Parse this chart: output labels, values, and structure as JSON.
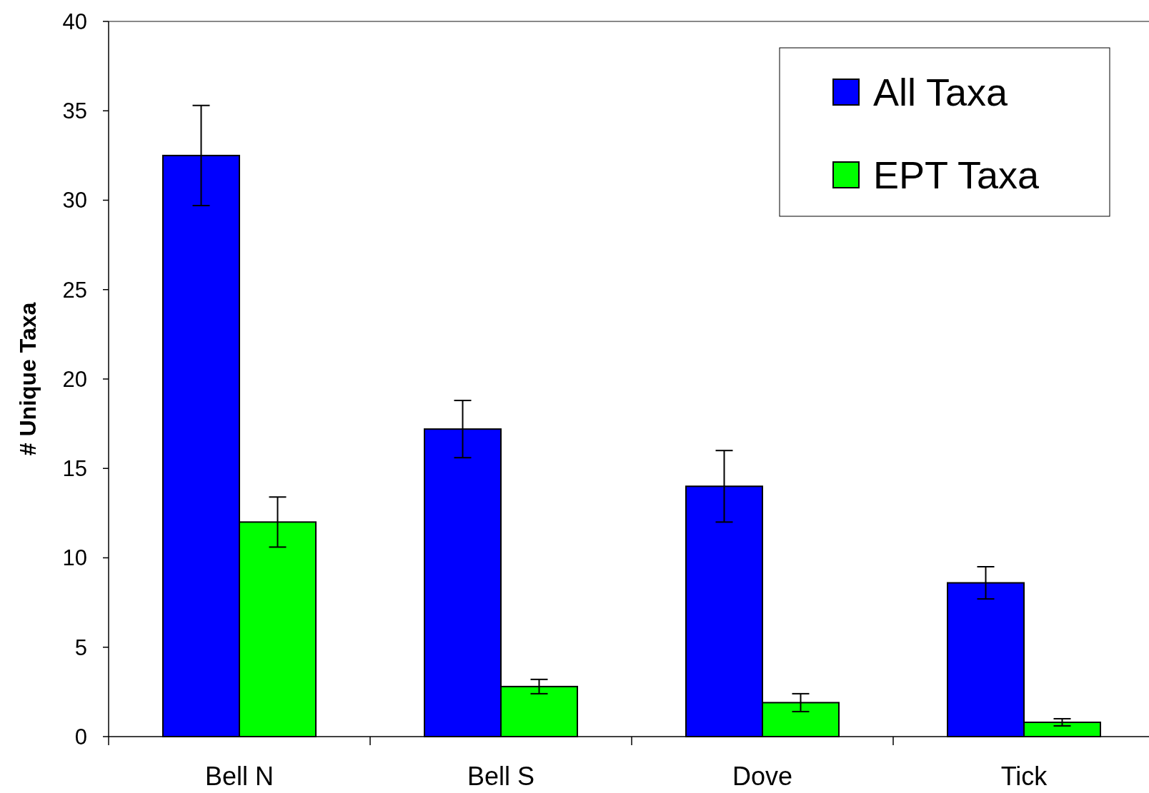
{
  "chart_data": {
    "type": "bar",
    "ylabel": "# Unique Taxa",
    "categories": [
      "Bell N",
      "Bell S",
      "Dove",
      "Tick"
    ],
    "series": [
      {
        "name": "All Taxa",
        "color": "#0000ff",
        "values": [
          32.5,
          17.2,
          14.0,
          8.6
        ],
        "errors": [
          2.8,
          1.6,
          2.0,
          0.9
        ]
      },
      {
        "name": "EPT Taxa",
        "color": "#00ff00",
        "values": [
          12.0,
          2.8,
          1.9,
          0.8
        ],
        "errors": [
          1.4,
          0.4,
          0.5,
          0.2
        ]
      }
    ],
    "ylim": [
      0,
      40
    ],
    "yticks": [
      0,
      5,
      10,
      15,
      20,
      25,
      30,
      35,
      40
    ],
    "grid": false,
    "legend": "top right"
  }
}
